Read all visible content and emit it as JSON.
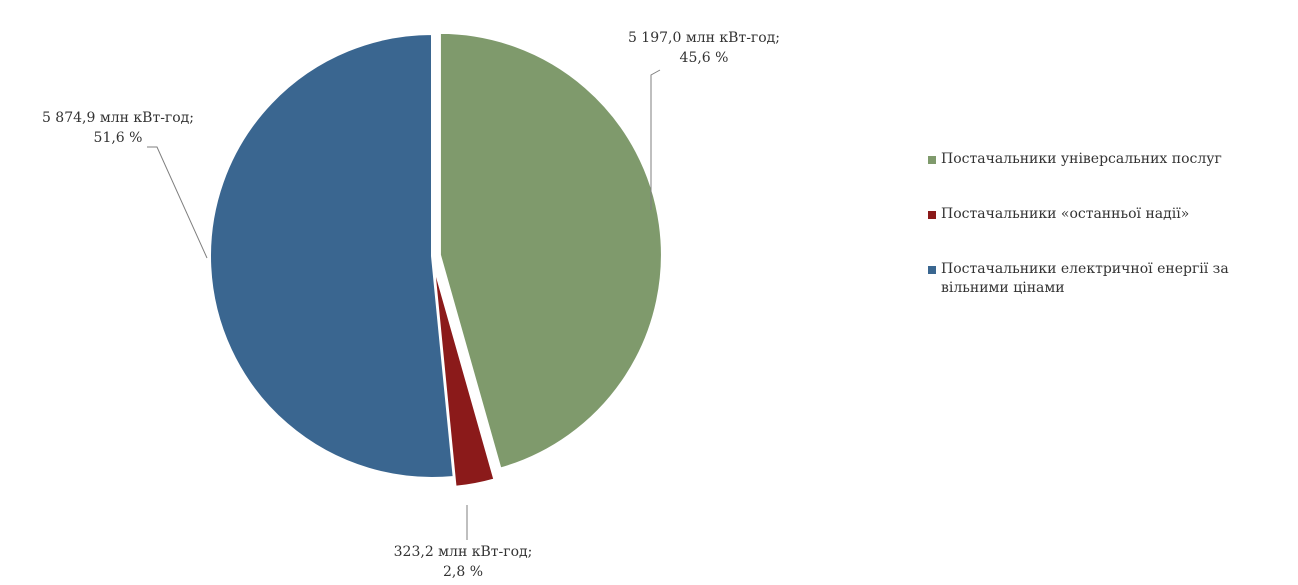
{
  "chart_data": {
    "type": "pie",
    "title": "",
    "slices": [
      {
        "name": "Постачальники універсальних послуг",
        "value": 5197.0,
        "percent": 45.6,
        "label_line1": "5 197,0 млн кВт-год;",
        "label_line2": "45,6 %",
        "color": "#7f9a6c"
      },
      {
        "name": "Постачальники «останньої надії»",
        "value": 323.2,
        "percent": 2.8,
        "label_line1": "323,2 млн кВт-год;",
        "label_line2": "2,8 %",
        "color": "#8b1a1a"
      },
      {
        "name": "Постачальники електричної енергії за вільними цінами",
        "value": 5874.9,
        "percent": 51.6,
        "label_line1": "5 874,9 млн кВт-год;",
        "label_line2": "51,6 %",
        "color": "#3a6690"
      }
    ],
    "legend_position": "right"
  },
  "legend": {
    "items": [
      {
        "text": "Постачальники універсальних послуг",
        "color": "#7f9a6c"
      },
      {
        "text": "Постачальники «останньої надії»",
        "color": "#8b1a1a"
      },
      {
        "text": "Постачальники електричної енергії за вільними цінами",
        "color": "#3a6690"
      }
    ]
  }
}
